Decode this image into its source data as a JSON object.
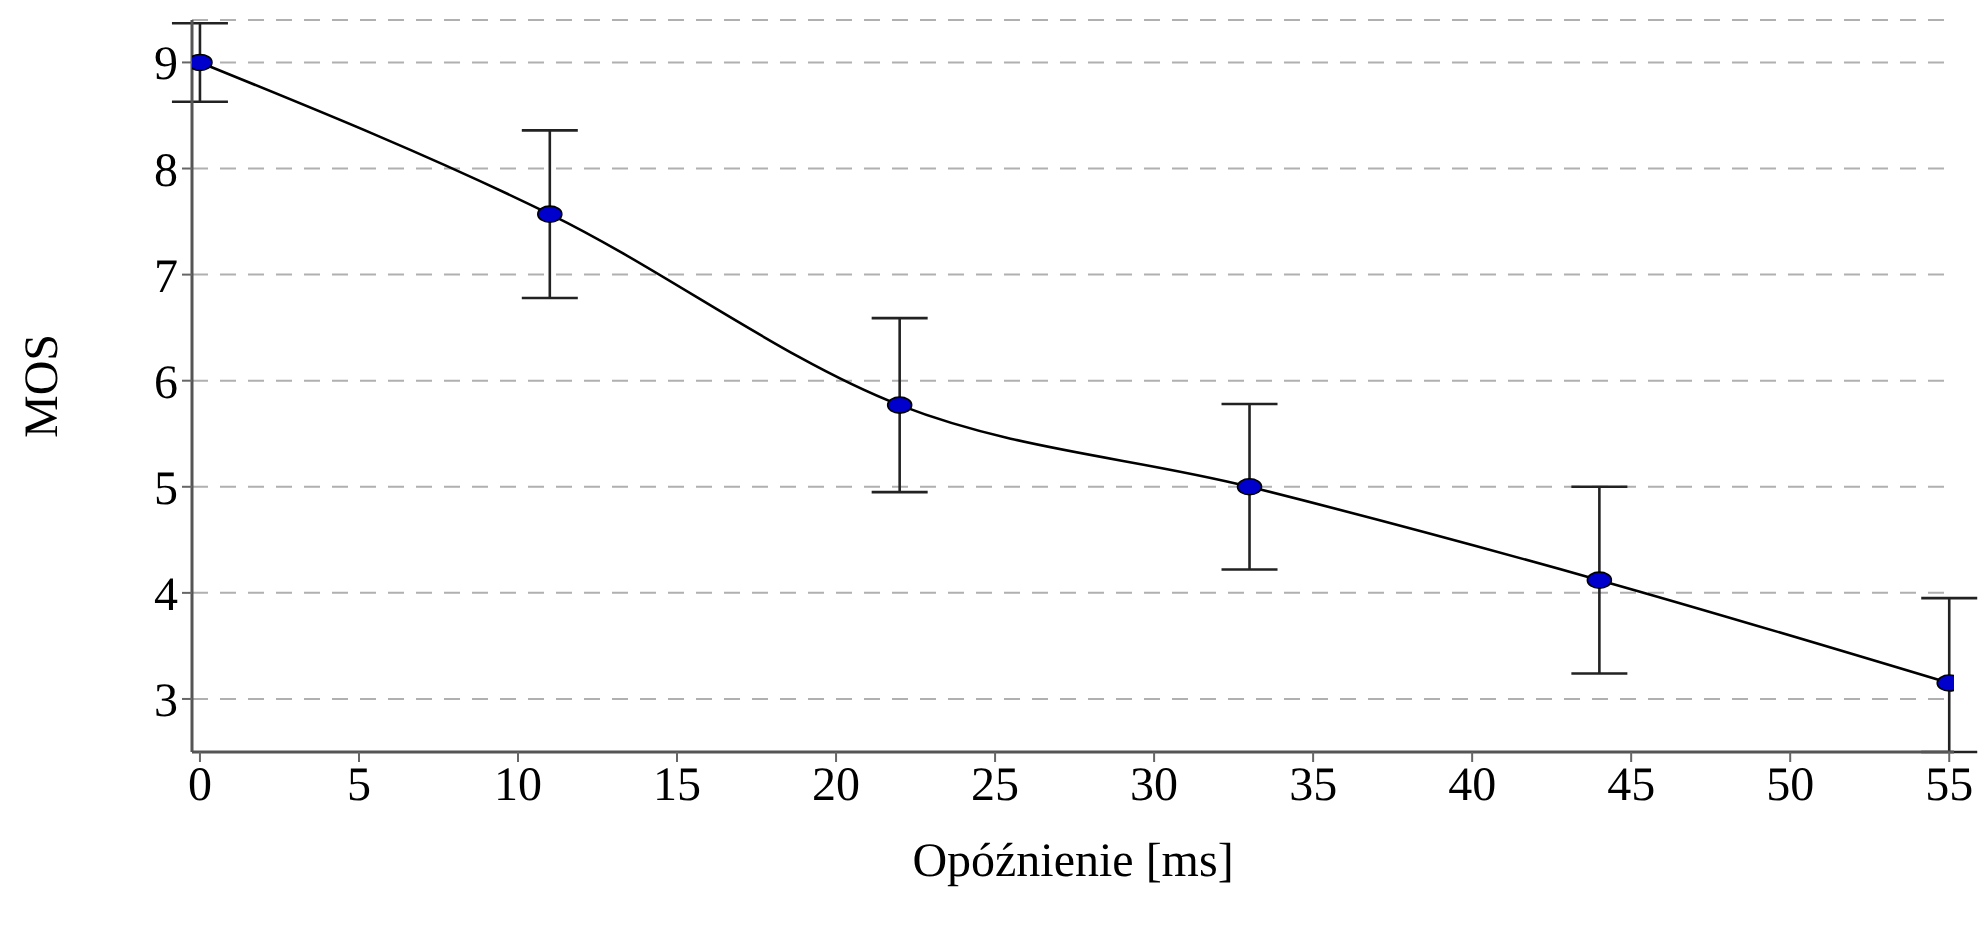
{
  "chart_data": {
    "type": "line",
    "xlabel": "Opóźnienie [ms]",
    "ylabel": "MOS",
    "x": [
      0,
      11,
      22,
      33,
      44,
      55
    ],
    "series": [
      {
        "color": "#000000",
        "colors": [
          "#0000cc",
          "#0000cc",
          "#0000cc",
          "#0000cc",
          "#0000cc",
          "#0000cc"
        ],
        "values": [
          9.0,
          7.57,
          5.77,
          5.0,
          4.12,
          3.15
        ],
        "errors": [
          0.37,
          0.79,
          0.82,
          0.78,
          0.88,
          [
            2.5,
            3.95
          ]
        ]
      }
    ],
    "xlim": [
      -0.25,
      55.15
    ],
    "xticks": [
      0,
      5,
      10,
      15,
      20,
      25,
      30,
      35,
      40,
      45,
      50,
      55
    ],
    "ylim": [
      2.5,
      9.4
    ],
    "yticks": [
      3,
      4,
      5,
      6,
      7,
      8,
      9
    ],
    "grid": "y",
    "marker": "circle",
    "line_style": "solid",
    "legend": false
  }
}
